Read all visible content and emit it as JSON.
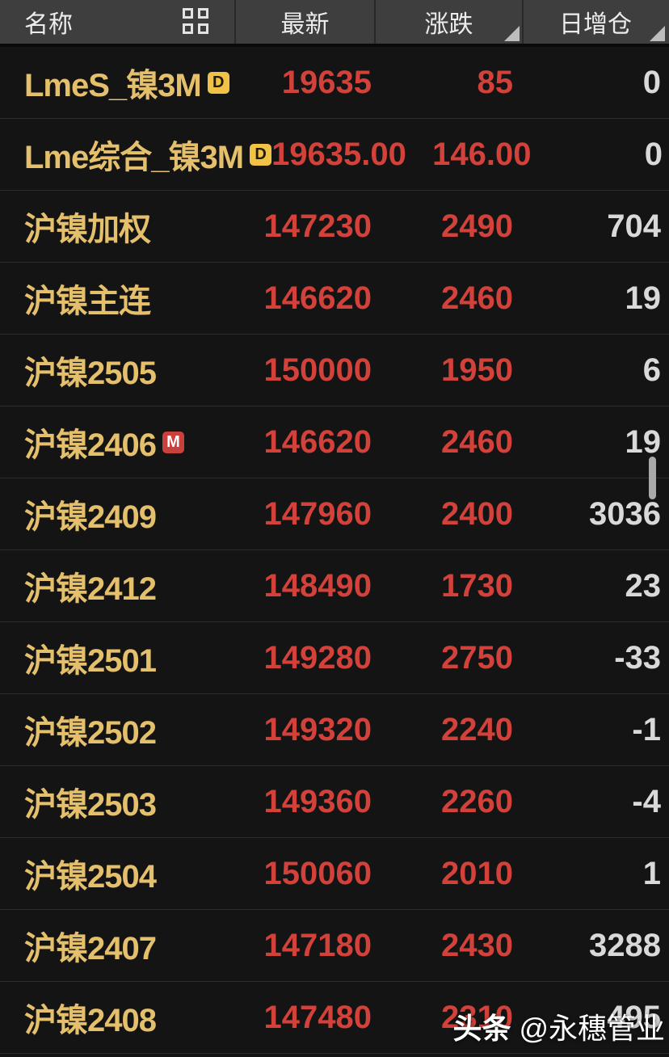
{
  "colors": {
    "background": "#141414",
    "header_background": "#3e3e3e",
    "row_divider": "#2c2c2c",
    "name_gold": "#e5c06c",
    "value_red": "#d2413a",
    "value_white": "#d9d9d9",
    "badge_d_background": "#f0c246",
    "badge_m_background": "#c9413c",
    "sort_triangle": "#bdbdbd",
    "scrollbar": "#a9a9a9"
  },
  "header": {
    "columns": [
      {
        "label": "名称",
        "sortable": false
      },
      {
        "label": "最新",
        "sortable": false
      },
      {
        "label": "涨跌",
        "sortable": true
      },
      {
        "label": "日增仓",
        "sortable": true
      }
    ],
    "icons": {
      "grid_view": "grid-view-icon",
      "sort": "sort-triangle-icon"
    }
  },
  "table": {
    "rows": [
      {
        "name": "LmeS_镍3M",
        "badge": "D",
        "last": "19635",
        "change": "85",
        "oi": "0"
      },
      {
        "name": "Lme综合_镍3M",
        "badge": "D",
        "last": "19635.00",
        "change": "146.00",
        "oi": "0"
      },
      {
        "name": "沪镍加权",
        "badge": "",
        "last": "147230",
        "change": "2490",
        "oi": "704"
      },
      {
        "name": "沪镍主连",
        "badge": "",
        "last": "146620",
        "change": "2460",
        "oi": "19"
      },
      {
        "name": "沪镍2505",
        "badge": "",
        "last": "150000",
        "change": "1950",
        "oi": "6"
      },
      {
        "name": "沪镍2406",
        "badge": "M",
        "last": "146620",
        "change": "2460",
        "oi": "19"
      },
      {
        "name": "沪镍2409",
        "badge": "",
        "last": "147960",
        "change": "2400",
        "oi": "3036"
      },
      {
        "name": "沪镍2412",
        "badge": "",
        "last": "148490",
        "change": "1730",
        "oi": "23"
      },
      {
        "name": "沪镍2501",
        "badge": "",
        "last": "149280",
        "change": "2750",
        "oi": "-33"
      },
      {
        "name": "沪镍2502",
        "badge": "",
        "last": "149320",
        "change": "2240",
        "oi": "-1"
      },
      {
        "name": "沪镍2503",
        "badge": "",
        "last": "149360",
        "change": "2260",
        "oi": "-4"
      },
      {
        "name": "沪镍2504",
        "badge": "",
        "last": "150060",
        "change": "2010",
        "oi": "1"
      },
      {
        "name": "沪镍2407",
        "badge": "",
        "last": "147180",
        "change": "2430",
        "oi": "3288"
      },
      {
        "name": "沪镍2408",
        "badge": "",
        "last": "147480",
        "change": "2310",
        "oi": "495"
      }
    ]
  },
  "watermark": {
    "prefix": "头条",
    "handle": "@永穗管业"
  }
}
